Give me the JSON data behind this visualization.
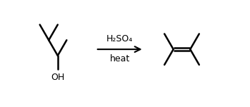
{
  "background_color": "#ffffff",
  "line_color": "#000000",
  "line_width": 1.8,
  "arrow_label_top": "H₂SO₄",
  "arrow_label_bottom": "heat",
  "label_oh": "OH",
  "font_size_arrow": 9,
  "font_size_oh": 9,
  "fig_width": 3.5,
  "fig_height": 1.5,
  "dpi": 100
}
